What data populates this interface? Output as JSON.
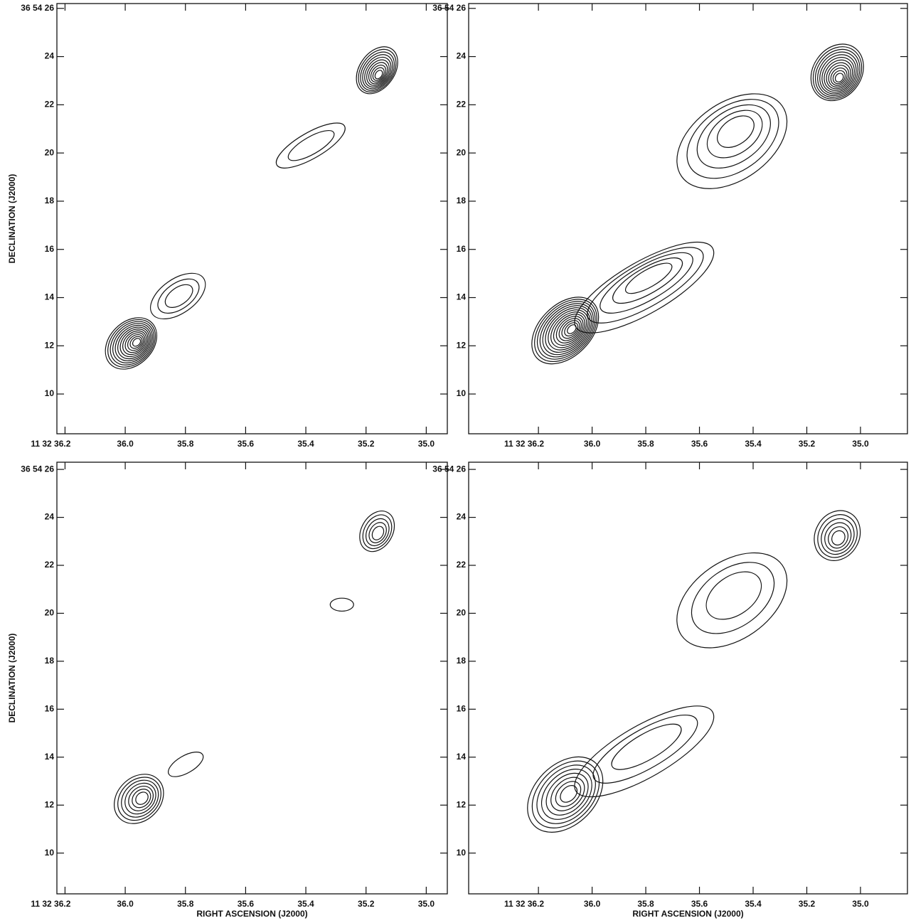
{
  "chart_data": [
    {
      "type": "contour",
      "ylabel": "DECLINATION (J2000)",
      "xlim": [
        36.227,
        34.93
      ],
      "ylim": [
        26.2,
        8.35
      ],
      "xticks": [
        {
          "value": 36.2,
          "label": "11 32 36.2"
        },
        {
          "value": 36.0,
          "label": "36.0"
        },
        {
          "value": 35.8,
          "label": "35.8"
        },
        {
          "value": 35.6,
          "label": "35.6"
        },
        {
          "value": 35.4,
          "label": "35.4"
        },
        {
          "value": 35.2,
          "label": "35.2"
        },
        {
          "value": 35.0,
          "label": "35.0"
        }
      ],
      "yticks": [
        {
          "value": 26,
          "label": "36 54 26"
        },
        24,
        22,
        20,
        18,
        16,
        14,
        12,
        10
      ]
    },
    {
      "type": "contour",
      "xlim": [
        36.46,
        34.825
      ],
      "ylim": [
        26.2,
        8.35
      ],
      "xticks": [
        {
          "value": 36.2,
          "label": "11 32 36.2"
        },
        {
          "value": 36.0,
          "label": "36.0"
        },
        {
          "value": 35.8,
          "label": "35.8"
        },
        {
          "value": 35.6,
          "label": "35.6"
        },
        {
          "value": 35.4,
          "label": "35.4"
        },
        {
          "value": 35.2,
          "label": "35.2"
        },
        {
          "value": 35.0,
          "label": "35.0"
        }
      ],
      "yticks": [
        {
          "value": 26,
          "label": "36 54 26"
        },
        24,
        22,
        20,
        18,
        16,
        14,
        12,
        10
      ]
    },
    {
      "type": "contour",
      "xlabel": "RIGHT ASCENSION (J2000)",
      "ylabel": "DECLINATION (J2000)",
      "xlim": [
        36.227,
        34.93
      ],
      "ylim": [
        26.3,
        8.3
      ],
      "xticks": [
        {
          "value": 36.2,
          "label": "11 32 36.2"
        },
        {
          "value": 36.0,
          "label": "36.0"
        },
        {
          "value": 35.8,
          "label": "35.8"
        },
        {
          "value": 35.6,
          "label": "35.6"
        },
        {
          "value": 35.4,
          "label": "35.4"
        },
        {
          "value": 35.2,
          "label": "35.2"
        },
        {
          "value": 35.0,
          "label": "35.0"
        }
      ],
      "yticks": [
        {
          "value": 26,
          "label": "36 54 26"
        },
        24,
        22,
        20,
        18,
        16,
        14,
        12,
        10
      ]
    },
    {
      "type": "contour",
      "xlabel": "RIGHT ASCENSION (J2000)",
      "xlim": [
        36.46,
        34.825
      ],
      "ylim": [
        26.3,
        8.3
      ],
      "xticks": [
        {
          "value": 36.2,
          "label": "11 32 36.2"
        },
        {
          "value": 36.0,
          "label": "36.0"
        },
        {
          "value": 35.8,
          "label": "35.8"
        },
        {
          "value": 35.6,
          "label": "35.6"
        },
        {
          "value": 35.4,
          "label": "35.4"
        },
        {
          "value": 35.2,
          "label": "35.2"
        },
        {
          "value": 35.0,
          "label": "35.0"
        }
      ],
      "yticks": [
        {
          "value": 26,
          "label": "36 54 26"
        },
        24,
        22,
        20,
        18,
        16,
        14,
        12,
        10
      ]
    }
  ]
}
